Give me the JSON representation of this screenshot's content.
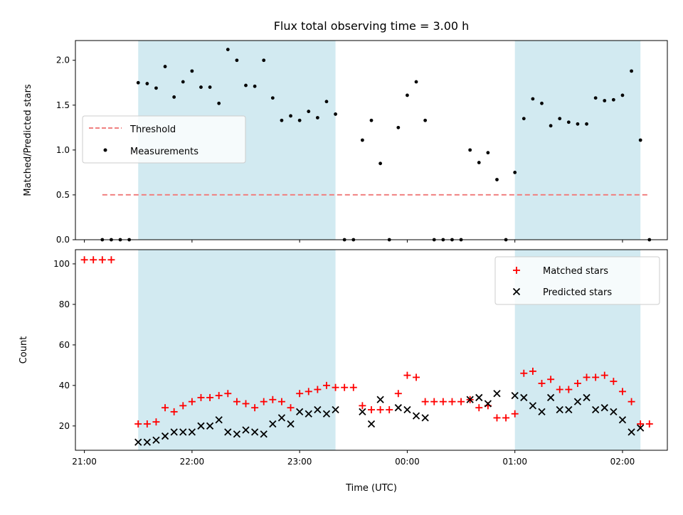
{
  "chart_data": [
    {
      "type": "scatter",
      "title": "Flux total observing time = 3.00 h",
      "xlabel": "",
      "ylabel": "Matched/Predicted stars",
      "ylim": [
        0,
        2.22
      ],
      "xlim": [
        -5,
        325
      ],
      "yticks": [
        0,
        0.5,
        1,
        1.5,
        2
      ],
      "ytick_labels": [
        "0.0",
        "0.5",
        "1.0",
        "1.5",
        "2.0"
      ],
      "legend": {
        "placement": "center-left",
        "threshold_label": "Threshold",
        "measurements_label": "Measurements"
      },
      "shaded_intervals": [
        [
          "21:30",
          "23:20"
        ],
        [
          "01:00",
          "02:10"
        ]
      ],
      "threshold": {
        "name": "Threshold",
        "value": 0.5,
        "x_range": [
          "21:10",
          "02:15"
        ],
        "color": "#f08080"
      },
      "series": [
        {
          "name": "Measurements",
          "color": "#000000",
          "points": [
            [
              "21:10",
              0
            ],
            [
              "21:15",
              0
            ],
            [
              "21:20",
              0
            ],
            [
              "21:25",
              0
            ],
            [
              "21:30",
              1.75
            ],
            [
              "21:35",
              1.74
            ],
            [
              "21:40",
              1.69
            ],
            [
              "21:45",
              1.93
            ],
            [
              "21:50",
              1.59
            ],
            [
              "21:55",
              1.76
            ],
            [
              "22:00",
              1.88
            ],
            [
              "22:05",
              1.7
            ],
            [
              "22:10",
              1.7
            ],
            [
              "22:15",
              1.52
            ],
            [
              "22:20",
              2.12
            ],
            [
              "22:25",
              2.0
            ],
            [
              "22:30",
              1.72
            ],
            [
              "22:35",
              1.71
            ],
            [
              "22:40",
              2.0
            ],
            [
              "22:45",
              1.58
            ],
            [
              "22:50",
              1.33
            ],
            [
              "22:55",
              1.38
            ],
            [
              "23:00",
              1.33
            ],
            [
              "23:05",
              1.43
            ],
            [
              "23:10",
              1.36
            ],
            [
              "23:15",
              1.54
            ],
            [
              "23:20",
              1.4
            ],
            [
              "23:25",
              0
            ],
            [
              "23:30",
              0
            ],
            [
              "23:35",
              1.11
            ],
            [
              "23:40",
              1.33
            ],
            [
              "23:45",
              0.85
            ],
            [
              "23:50",
              0
            ],
            [
              "23:55",
              1.25
            ],
            [
              "00:00",
              1.61
            ],
            [
              "00:05",
              1.76
            ],
            [
              "00:10",
              1.33
            ],
            [
              "00:15",
              0
            ],
            [
              "00:20",
              0
            ],
            [
              "00:25",
              0
            ],
            [
              "00:30",
              0
            ],
            [
              "00:35",
              1.0
            ],
            [
              "00:40",
              0.86
            ],
            [
              "00:45",
              0.97
            ],
            [
              "00:50",
              0.67
            ],
            [
              "00:55",
              0
            ],
            [
              "01:00",
              0.75
            ],
            [
              "01:05",
              1.35
            ],
            [
              "01:10",
              1.57
            ],
            [
              "01:15",
              1.52
            ],
            [
              "01:20",
              1.27
            ],
            [
              "01:25",
              1.35
            ],
            [
              "01:30",
              1.31
            ],
            [
              "01:35",
              1.29
            ],
            [
              "01:40",
              1.29
            ],
            [
              "01:45",
              1.58
            ],
            [
              "01:50",
              1.55
            ],
            [
              "01:55",
              1.56
            ],
            [
              "02:00",
              1.61
            ],
            [
              "02:05",
              1.88
            ],
            [
              "02:10",
              1.11
            ],
            [
              "02:15",
              0
            ]
          ]
        }
      ]
    },
    {
      "type": "scatter",
      "title": "",
      "xlabel": "Time (UTC)",
      "ylabel": "Count",
      "ylim": [
        8,
        107
      ],
      "xlim": [
        -5,
        325
      ],
      "yticks": [
        20,
        40,
        60,
        80,
        100
      ],
      "ytick_labels": [
        "20",
        "40",
        "60",
        "80",
        "100"
      ],
      "xticks": [
        "21:00",
        "22:00",
        "23:00",
        "00:00",
        "01:00",
        "02:00"
      ],
      "legend": {
        "placement": "top-right"
      },
      "shaded_intervals": [
        [
          "21:30",
          "23:20"
        ],
        [
          "01:00",
          "02:10"
        ]
      ],
      "series": [
        {
          "name": "Matched stars",
          "marker": "plus",
          "color": "#ff0000",
          "points": [
            [
              "21:00",
              102
            ],
            [
              "21:05",
              102
            ],
            [
              "21:10",
              102
            ],
            [
              "21:15",
              102
            ],
            [
              "21:30",
              21
            ],
            [
              "21:35",
              21
            ],
            [
              "21:40",
              22
            ],
            [
              "21:45",
              29
            ],
            [
              "21:50",
              27
            ],
            [
              "21:55",
              30
            ],
            [
              "22:00",
              32
            ],
            [
              "22:05",
              34
            ],
            [
              "22:10",
              34
            ],
            [
              "22:15",
              35
            ],
            [
              "22:20",
              36
            ],
            [
              "22:25",
              32
            ],
            [
              "22:30",
              31
            ],
            [
              "22:35",
              29
            ],
            [
              "22:40",
              32
            ],
            [
              "22:45",
              33
            ],
            [
              "22:50",
              32
            ],
            [
              "22:55",
              29
            ],
            [
              "23:00",
              36
            ],
            [
              "23:05",
              37
            ],
            [
              "23:10",
              38
            ],
            [
              "23:15",
              40
            ],
            [
              "23:20",
              39
            ],
            [
              "23:25",
              39
            ],
            [
              "23:30",
              39
            ],
            [
              "23:35",
              30
            ],
            [
              "23:40",
              28
            ],
            [
              "23:45",
              28
            ],
            [
              "23:50",
              28
            ],
            [
              "23:55",
              36
            ],
            [
              "00:00",
              45
            ],
            [
              "00:05",
              44
            ],
            [
              "00:10",
              32
            ],
            [
              "00:15",
              32
            ],
            [
              "00:20",
              32
            ],
            [
              "00:25",
              32
            ],
            [
              "00:30",
              32
            ],
            [
              "00:35",
              33
            ],
            [
              "00:40",
              29
            ],
            [
              "00:45",
              30
            ],
            [
              "00:50",
              24
            ],
            [
              "00:55",
              24
            ],
            [
              "01:00",
              26
            ],
            [
              "01:05",
              46
            ],
            [
              "01:10",
              47
            ],
            [
              "01:15",
              41
            ],
            [
              "01:20",
              43
            ],
            [
              "01:25",
              38
            ],
            [
              "01:30",
              38
            ],
            [
              "01:35",
              41
            ],
            [
              "01:40",
              44
            ],
            [
              "01:45",
              44
            ],
            [
              "01:50",
              45
            ],
            [
              "01:55",
              42
            ],
            [
              "02:00",
              37
            ],
            [
              "02:05",
              32
            ],
            [
              "02:10",
              21
            ],
            [
              "02:15",
              21
            ]
          ]
        },
        {
          "name": "Predicted stars",
          "marker": "x",
          "color": "#000000",
          "points": [
            [
              "21:30",
              12
            ],
            [
              "21:35",
              12
            ],
            [
              "21:40",
              13
            ],
            [
              "21:45",
              15
            ],
            [
              "21:50",
              17
            ],
            [
              "21:55",
              17
            ],
            [
              "22:00",
              17
            ],
            [
              "22:05",
              20
            ],
            [
              "22:10",
              20
            ],
            [
              "22:15",
              23
            ],
            [
              "22:20",
              17
            ],
            [
              "22:25",
              16
            ],
            [
              "22:30",
              18
            ],
            [
              "22:35",
              17
            ],
            [
              "22:40",
              16
            ],
            [
              "22:45",
              21
            ],
            [
              "22:50",
              24
            ],
            [
              "22:55",
              21
            ],
            [
              "23:00",
              27
            ],
            [
              "23:05",
              26
            ],
            [
              "23:10",
              28
            ],
            [
              "23:15",
              26
            ],
            [
              "23:20",
              28
            ],
            [
              "23:35",
              27
            ],
            [
              "23:40",
              21
            ],
            [
              "23:45",
              33
            ],
            [
              "23:55",
              29
            ],
            [
              "00:00",
              28
            ],
            [
              "00:05",
              25
            ],
            [
              "00:10",
              24
            ],
            [
              "00:35",
              33
            ],
            [
              "00:40",
              34
            ],
            [
              "00:45",
              31
            ],
            [
              "00:50",
              36
            ],
            [
              "01:00",
              35
            ],
            [
              "01:05",
              34
            ],
            [
              "01:10",
              30
            ],
            [
              "01:15",
              27
            ],
            [
              "01:20",
              34
            ],
            [
              "01:25",
              28
            ],
            [
              "01:30",
              28
            ],
            [
              "01:35",
              32
            ],
            [
              "01:40",
              34
            ],
            [
              "01:45",
              28
            ],
            [
              "01:50",
              29
            ],
            [
              "01:55",
              27
            ],
            [
              "02:00",
              23
            ],
            [
              "02:05",
              17
            ],
            [
              "02:10",
              19
            ]
          ]
        }
      ]
    }
  ],
  "colors": {
    "shade": "#add8e6",
    "threshold": "#f08080",
    "matched": "#ff0000",
    "predicted": "#000000"
  }
}
